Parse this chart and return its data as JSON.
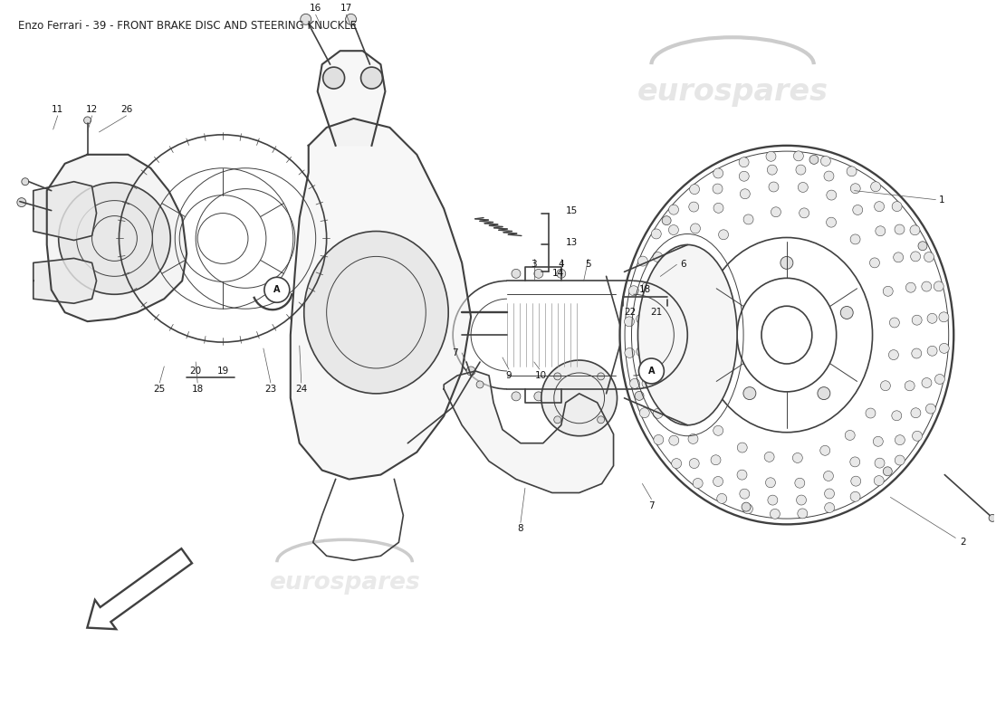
{
  "title": "Enzo Ferrari - 39 - FRONT BRAKE DISC AND STEERING KNUCKLE",
  "title_fontsize": 8.5,
  "title_color": "#222222",
  "bg_color": "#ffffff",
  "watermark_text": "eurospares",
  "watermark_color": "#c8c8c8",
  "draw_color": "#404040",
  "lw_main": 1.2,
  "lw_thin": 0.7,
  "label_fontsize": 7.5,
  "label_color": "#111111",
  "fig_w": 11.0,
  "fig_h": 8.0,
  "dpi": 100,
  "xlim": [
    0,
    1100
  ],
  "ylim": [
    0,
    800
  ]
}
